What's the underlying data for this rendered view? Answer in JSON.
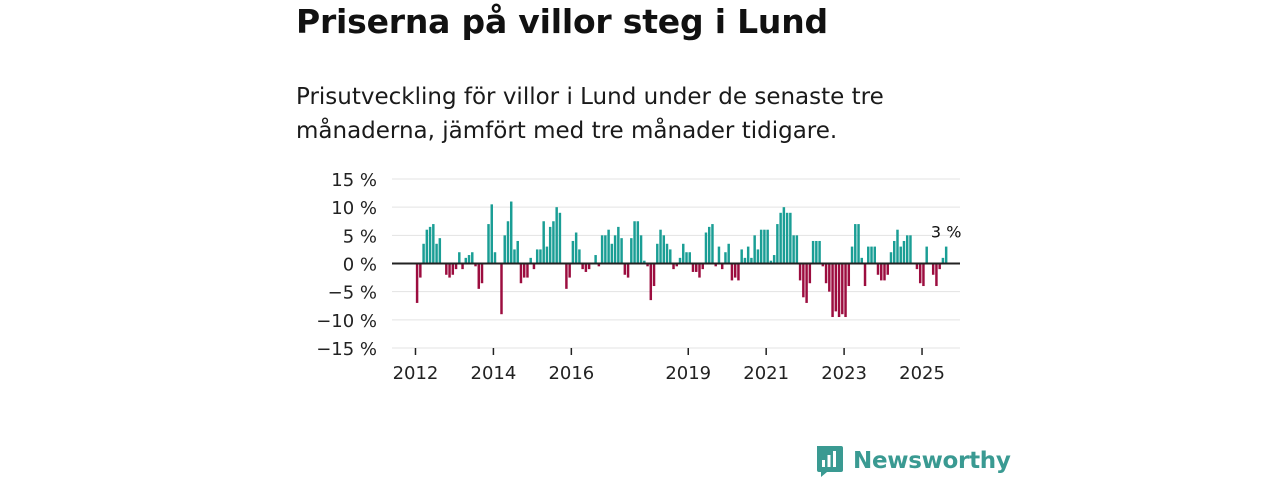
{
  "title": "Priserna på villor steg i Lund",
  "subtitle": "Prisutveckling för villor i Lund under de senaste tre månaderna, jämfört med tre månader tidigare.",
  "brand": {
    "name": "Newsworthy"
  },
  "colors": {
    "positive": "#1a9e95",
    "negative": "#9c0d3f",
    "grid": "#e3e3e3",
    "zero": "#222222",
    "text": "#222222",
    "brand": "#3a9a92"
  },
  "chart_data": {
    "type": "bar",
    "title": "Priserna på villor steg i Lund",
    "xlabel": "",
    "ylabel": "",
    "unit": "%",
    "ylim": [
      -15,
      15
    ],
    "y_ticks": [
      {
        "value": 15,
        "label": "15 %"
      },
      {
        "value": 10,
        "label": "10 %"
      },
      {
        "value": 5,
        "label": "5 %"
      },
      {
        "value": 0,
        "label": "0 %"
      },
      {
        "value": -5,
        "label": "−5 %"
      },
      {
        "value": -10,
        "label": "−10 %"
      },
      {
        "value": -15,
        "label": "−15 %"
      }
    ],
    "x_start": 2011.5,
    "x_end": 2026.0,
    "x_step_years": 0.0833,
    "x_ticks": [
      {
        "year": 2012,
        "label": "2012"
      },
      {
        "year": 2014,
        "label": "2014"
      },
      {
        "year": 2016,
        "label": "2016"
      },
      {
        "year": 2019,
        "label": "2019"
      },
      {
        "year": 2021,
        "label": "2021"
      },
      {
        "year": 2023,
        "label": "2023"
      },
      {
        "year": 2025,
        "label": "2025"
      }
    ],
    "values": [
      0,
      0,
      0,
      0,
      0,
      0,
      -7,
      -2.5,
      3.5,
      6,
      6.5,
      7,
      3.5,
      4.5,
      0,
      -2,
      -2.5,
      -2,
      -1,
      2,
      -1,
      1,
      1.5,
      2,
      -0.5,
      -4.5,
      -3.5,
      0,
      7,
      10.5,
      2,
      0,
      -9,
      5,
      7.5,
      11,
      2.5,
      4,
      -3.5,
      -2.5,
      -2.5,
      1,
      -1,
      2.5,
      2.5,
      7.5,
      3,
      6.5,
      7.5,
      10,
      9,
      0,
      -4.5,
      -2.5,
      4,
      5.5,
      2.5,
      -1,
      -1.5,
      -1,
      0,
      1.5,
      -0.5,
      5,
      5,
      6,
      3.5,
      5,
      6.5,
      4.5,
      -2,
      -2.5,
      4.5,
      7.5,
      7.5,
      5,
      0.5,
      -0.5,
      -6.5,
      -4,
      3.5,
      6,
      5,
      3.5,
      2.5,
      -1,
      -0.5,
      1,
      3.5,
      2,
      2,
      -1.5,
      -1.5,
      -2.5,
      -1,
      5.5,
      6.5,
      7,
      -0.5,
      3,
      -1,
      2,
      3.5,
      -3,
      -2.5,
      -3,
      2.5,
      1,
      3,
      1,
      5,
      2.5,
      6,
      6,
      6,
      0.5,
      1.5,
      7,
      9,
      10,
      9,
      9,
      5,
      5,
      -3,
      -6,
      -7,
      -3.5,
      4,
      4,
      4,
      -0.5,
      -3.5,
      -5,
      -9.5,
      -8.5,
      -9.5,
      -9,
      -9.5,
      -4,
      3,
      7,
      7,
      1,
      -4,
      3,
      3,
      3,
      -2,
      -3,
      -3,
      -2,
      2,
      4,
      6,
      3,
      4,
      5,
      5,
      0,
      -1,
      -3.5,
      -4,
      3,
      0,
      -2,
      -4,
      -1,
      1,
      3
    ],
    "annotation": {
      "label": "3 %",
      "value": 3
    }
  }
}
